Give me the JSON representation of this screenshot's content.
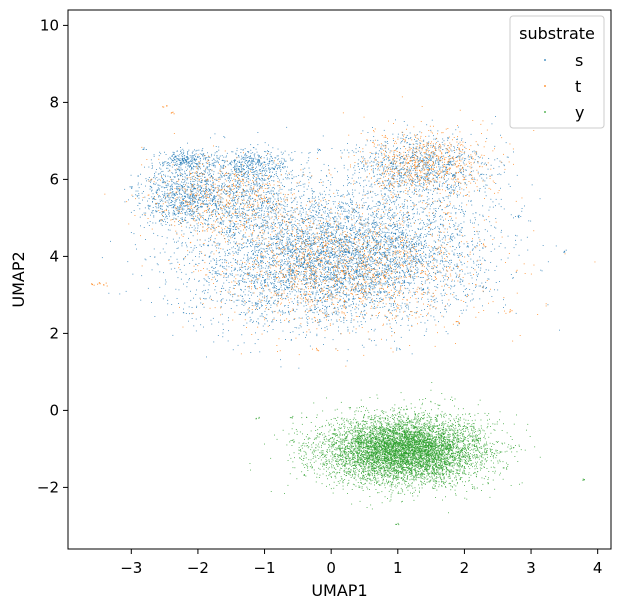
{
  "chart_data": {
    "type": "scatter",
    "title": "",
    "xlabel": "UMAP1",
    "ylabel": "UMAP2",
    "xlim": [
      -3.95,
      4.2
    ],
    "ylim": [
      -3.6,
      10.4
    ],
    "xticks": [
      -3,
      -2,
      -1,
      0,
      1,
      2,
      3,
      4
    ],
    "yticks": [
      -2,
      0,
      2,
      4,
      6,
      8,
      10
    ],
    "xtick_labels": [
      "−3",
      "−2",
      "−1",
      "0",
      "1",
      "2",
      "3",
      "4"
    ],
    "ytick_labels": [
      "−2",
      "0",
      "2",
      "4",
      "6",
      "8",
      "10"
    ],
    "grid": false,
    "legend": {
      "title": "substrate",
      "placement": "top-right",
      "entries": [
        "s",
        "t",
        "y"
      ]
    },
    "series": [
      {
        "name": "s",
        "color": "#1f77b4",
        "approx_points": 9000,
        "clusters": [
          {
            "cx": -0.3,
            "cy": 3.9,
            "sx": 0.95,
            "sy": 0.85,
            "weight": 0.42
          },
          {
            "cx": 0.9,
            "cy": 4.2,
            "sx": 0.8,
            "sy": 0.8,
            "weight": 0.2
          },
          {
            "cx": -1.5,
            "cy": 5.6,
            "sx": 0.55,
            "sy": 0.5,
            "weight": 0.12
          },
          {
            "cx": -2.3,
            "cy": 5.6,
            "sx": 0.3,
            "sy": 0.35,
            "weight": 0.07
          },
          {
            "cx": 1.3,
            "cy": 6.3,
            "sx": 0.55,
            "sy": 0.45,
            "weight": 0.12
          },
          {
            "cx": -1.2,
            "cy": 6.4,
            "sx": 0.3,
            "sy": 0.2,
            "weight": 0.04
          },
          {
            "cx": -2.2,
            "cy": 6.5,
            "sx": 0.2,
            "sy": 0.15,
            "weight": 0.03
          }
        ],
        "outliers": [
          [
            2.8,
            5.05
          ],
          [
            -2.8,
            6.8
          ],
          [
            -3.0,
            5.8
          ],
          [
            -0.2,
            6.8
          ],
          [
            1.0,
            1.6
          ],
          [
            3.5,
            4.15
          ],
          [
            2.3,
            3.2
          ]
        ]
      },
      {
        "name": "t",
        "color": "#ff7f0e",
        "approx_points": 2800,
        "clusters": [
          {
            "cx": 0.2,
            "cy": 3.7,
            "sx": 1.0,
            "sy": 0.8,
            "weight": 0.55
          },
          {
            "cx": 1.4,
            "cy": 6.4,
            "sx": 0.5,
            "sy": 0.45,
            "weight": 0.25
          },
          {
            "cx": -1.6,
            "cy": 5.5,
            "sx": 0.6,
            "sy": 0.5,
            "weight": 0.2
          }
        ],
        "outliers": [
          [
            -2.5,
            7.9
          ],
          [
            -2.4,
            7.75
          ],
          [
            -3.5,
            3.3
          ],
          [
            -3.4,
            3.28
          ],
          [
            -3.6,
            3.3
          ],
          [
            2.7,
            2.6
          ],
          [
            1.9,
            2.3
          ],
          [
            2.3,
            4.3
          ],
          [
            -0.2,
            1.6
          ]
        ]
      },
      {
        "name": "y",
        "color": "#2ca02c",
        "approx_points": 7000,
        "clusters": [
          {
            "cx": 1.2,
            "cy": -1.05,
            "sx": 0.55,
            "sy": 0.42,
            "weight": 0.55
          },
          {
            "cx": 0.9,
            "cy": -1.0,
            "sx": 0.6,
            "sy": 0.45,
            "weight": 0.45
          }
        ],
        "outliers": [
          [
            -0.6,
            -0.15
          ],
          [
            -0.6,
            -0.8
          ],
          [
            2.7,
            -0.95
          ],
          [
            2.6,
            -1.5
          ],
          [
            -1.1,
            -0.2
          ],
          [
            3.8,
            -1.8
          ],
          [
            1.0,
            -2.95
          ],
          [
            2.1,
            -0.65
          ],
          [
            2.15,
            -2.0
          ],
          [
            2.2,
            -0.7
          ]
        ]
      }
    ]
  }
}
